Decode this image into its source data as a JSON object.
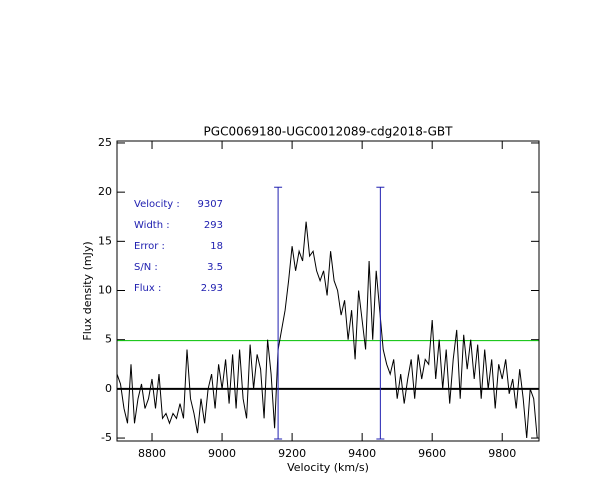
{
  "chart_data": {
    "type": "line",
    "title": "PGC0069180-UGC0012089-cdg2018-GBT",
    "xlabel": "Velocity (km/s)",
    "ylabel": "Flux density (mJy)",
    "x": [
      8700,
      8710,
      8720,
      8730,
      8740,
      8750,
      8760,
      8770,
      8780,
      8790,
      8800,
      8810,
      8820,
      8830,
      8840,
      8850,
      8860,
      8870,
      8880,
      8890,
      8900,
      8910,
      8920,
      8930,
      8940,
      8950,
      8960,
      8970,
      8980,
      8990,
      9000,
      9010,
      9020,
      9030,
      9040,
      9050,
      9060,
      9070,
      9080,
      9090,
      9100,
      9110,
      9120,
      9130,
      9140,
      9150,
      9160,
      9170,
      9180,
      9190,
      9200,
      9210,
      9220,
      9230,
      9240,
      9250,
      9260,
      9270,
      9280,
      9290,
      9300,
      9310,
      9320,
      9330,
      9340,
      9350,
      9360,
      9370,
      9380,
      9390,
      9400,
      9410,
      9420,
      9430,
      9440,
      9450,
      9460,
      9470,
      9480,
      9490,
      9500,
      9510,
      9520,
      9530,
      9540,
      9550,
      9560,
      9570,
      9580,
      9590,
      9600,
      9610,
      9620,
      9630,
      9640,
      9650,
      9660,
      9670,
      9680,
      9690,
      9700,
      9710,
      9720,
      9730,
      9740,
      9750,
      9760,
      9770,
      9780,
      9790,
      9800,
      9810,
      9820,
      9830,
      9840,
      9850,
      9860,
      9870,
      9880,
      9890,
      9900
    ],
    "series": [
      {
        "color": "#000000",
        "values": [
          1.5,
          0.5,
          -2,
          -3.5,
          2.5,
          -3.5,
          -1,
          0.5,
          -2,
          -1,
          1,
          -2,
          1.5,
          -3,
          -2.5,
          -3.5,
          -2.5,
          -3,
          -1.5,
          -3,
          4,
          -1,
          -2.5,
          -4.5,
          -1,
          -3.5,
          0,
          1.5,
          -2,
          2.5,
          0,
          3,
          -1.5,
          3.5,
          -2,
          4,
          -1,
          -3,
          4.5,
          0,
          3.5,
          2,
          -3,
          5,
          1.5,
          -4,
          4,
          6,
          8,
          11,
          14.5,
          12,
          14,
          13,
          17,
          13.5,
          14,
          12,
          11,
          12,
          9.5,
          14,
          11,
          10,
          7.5,
          9,
          5,
          8,
          3,
          10,
          7,
          4,
          13,
          5,
          12,
          8,
          4,
          2.5,
          1.5,
          3,
          -1,
          1.5,
          -1.5,
          1,
          3,
          -1,
          3.5,
          1,
          3,
          2.5,
          7,
          1,
          5,
          0,
          4,
          -1.5,
          3,
          6,
          -1,
          5.5,
          2,
          5,
          1,
          4.5,
          -1,
          4,
          0,
          3,
          -2,
          2.5,
          1,
          3,
          -0.5,
          1,
          -2,
          2,
          -1,
          -5,
          0,
          -1,
          -5
        ]
      }
    ],
    "xlim": [
      8700,
      9905
    ],
    "xticks": [
      8800,
      9000,
      9200,
      9400,
      9600,
      9800
    ],
    "ylim": [
      -5.3,
      25.2
    ],
    "yticks": [
      -5,
      0,
      5,
      10,
      15,
      20,
      25
    ],
    "vlines": {
      "x": [
        9160,
        9452
      ],
      "ymax": 20.5,
      "color": "#2020b0"
    },
    "hline": {
      "y": 4.9,
      "color": "#00c000"
    },
    "annotations": {
      "color": "#2020b0",
      "items": [
        {
          "label": "Velocity :",
          "value": 9307
        },
        {
          "label": "Width :",
          "value": 293
        },
        {
          "label": "Error :",
          "value": 18
        },
        {
          "label": "S/N :",
          "value": 3.5
        },
        {
          "label": "Flux :",
          "value": 2.93
        }
      ]
    }
  }
}
